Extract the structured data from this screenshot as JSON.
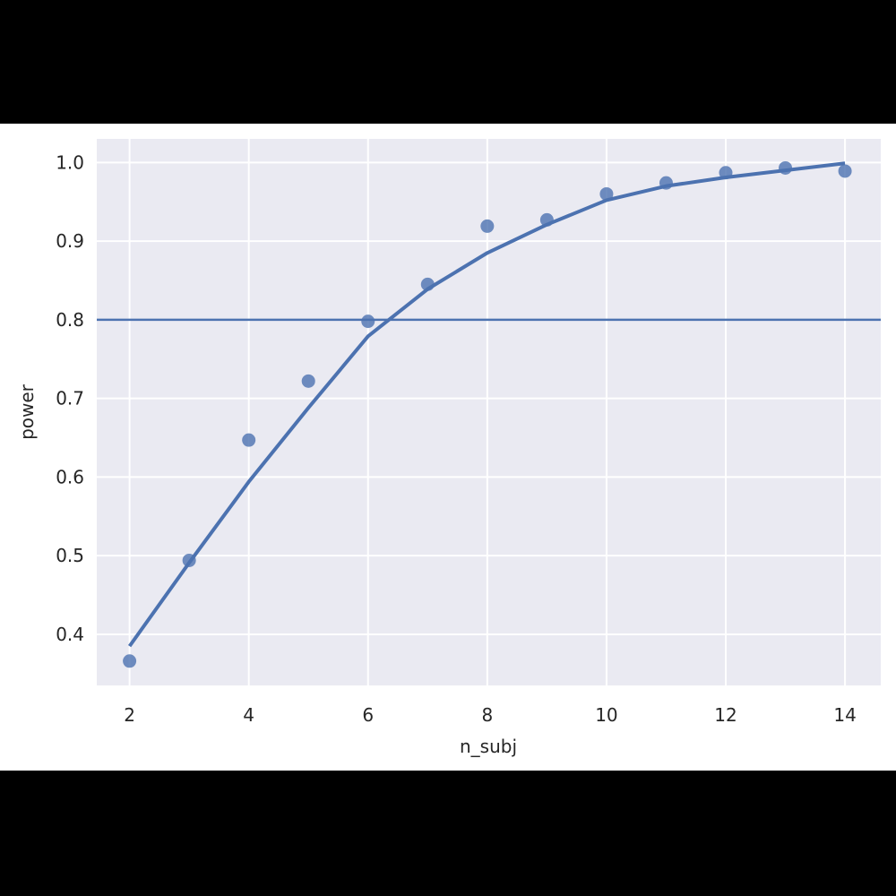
{
  "chart_data": {
    "type": "scatter",
    "x_label": "n_subj",
    "y_label": "power",
    "x": [
      2,
      3,
      4,
      5,
      6,
      7,
      8,
      9,
      10,
      11,
      12,
      13,
      14
    ],
    "series": [
      {
        "type": "scatter",
        "color": "#4c72b0",
        "values": [
          0.366,
          0.494,
          0.647,
          0.722,
          0.798,
          0.845,
          0.919,
          0.927,
          0.96,
          0.974,
          0.987,
          0.993,
          0.989
        ]
      },
      {
        "type": "line",
        "color": "#4c72b0",
        "values": [
          0.385,
          0.491,
          0.594,
          0.688,
          0.779,
          0.839,
          0.885,
          0.921,
          0.952,
          0.97,
          0.981,
          0.99,
          0.999
        ]
      }
    ],
    "hlines": [
      0.8
    ],
    "xlim": [
      1.45,
      14.6
    ],
    "ylim": [
      0.335,
      1.03
    ],
    "xticks": [
      2,
      4,
      6,
      8,
      10,
      12,
      14
    ],
    "yticks": [
      0.4,
      0.5,
      0.6,
      0.7,
      0.8,
      0.9,
      {
        "value": 1,
        "label": "1.0"
      }
    ],
    "grid": true,
    "background": "#eaeaf2"
  }
}
